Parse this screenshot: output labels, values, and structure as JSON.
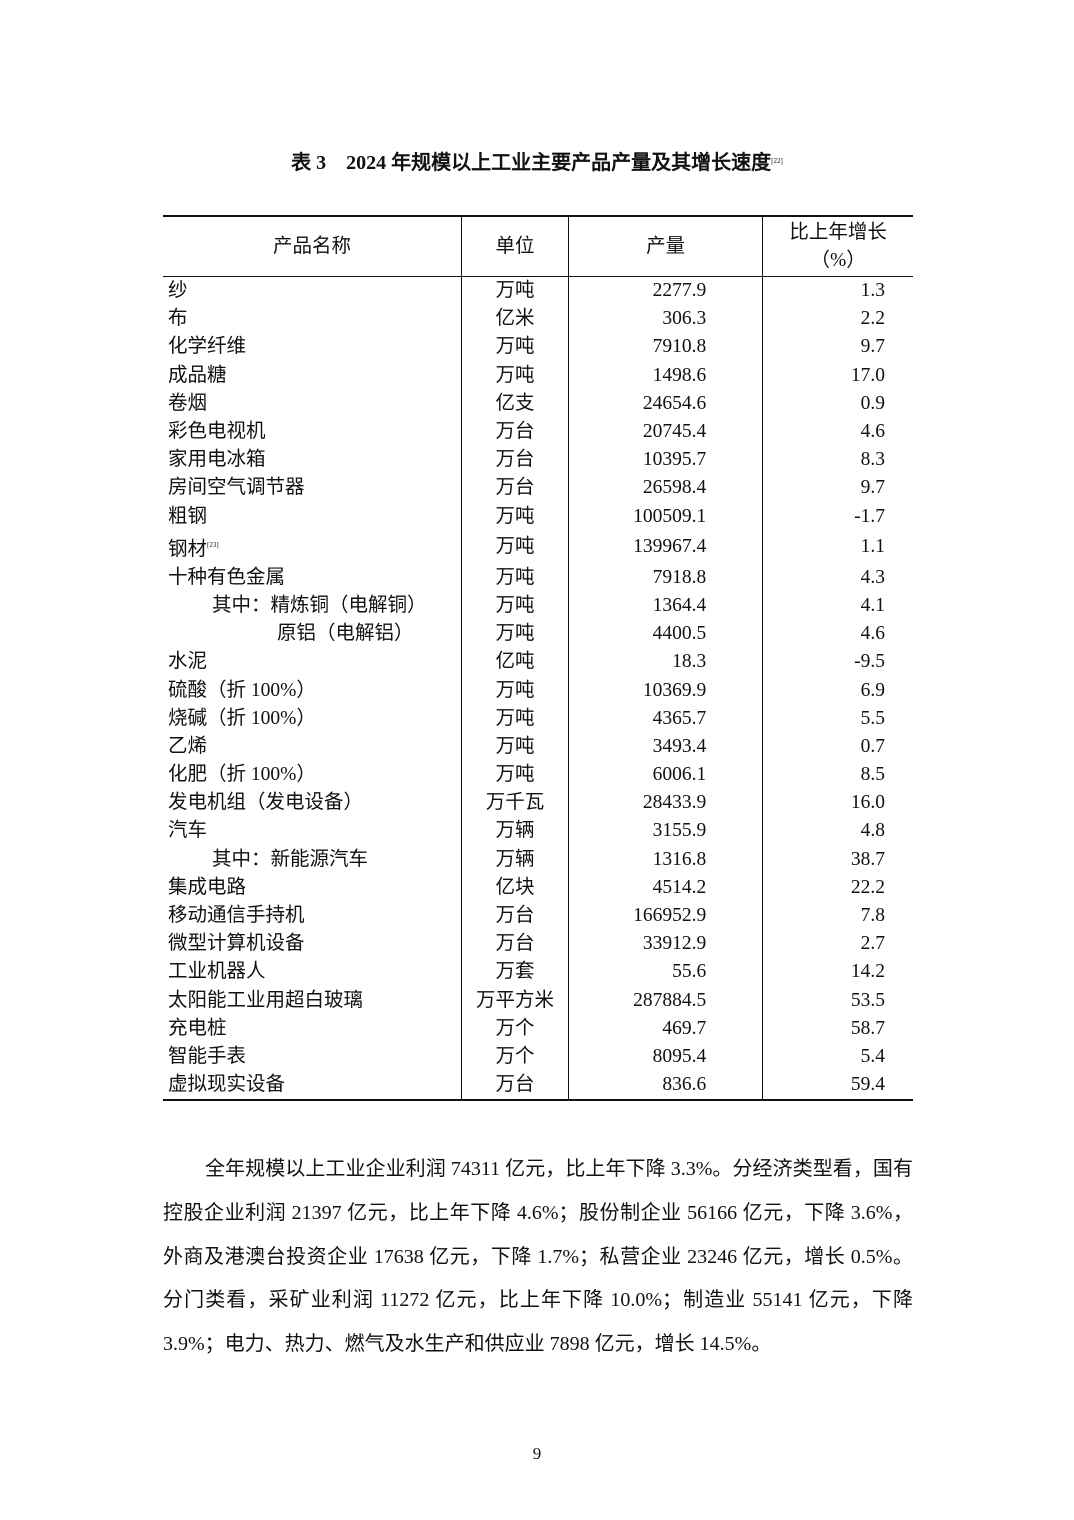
{
  "title": {
    "text": "表 3　2024 年规模以上工业主要产品产量及其增长速度",
    "footnote": "[22]"
  },
  "table": {
    "headers": [
      "产品名称",
      "单位",
      "产量",
      "比上年增长",
      "（%）"
    ],
    "rows": [
      {
        "name": "纱",
        "unit": "万吨",
        "output": "2277.9",
        "growth": "1.3"
      },
      {
        "name": "布",
        "unit": "亿米",
        "output": "306.3",
        "growth": "2.2"
      },
      {
        "name": "化学纤维",
        "unit": "万吨",
        "output": "7910.8",
        "growth": "9.7"
      },
      {
        "name": "成品糖",
        "unit": "万吨",
        "output": "1498.6",
        "growth": "17.0"
      },
      {
        "name": "卷烟",
        "unit": "亿支",
        "output": "24654.6",
        "growth": "0.9"
      },
      {
        "name": "彩色电视机",
        "unit": "万台",
        "output": "20745.4",
        "growth": "4.6"
      },
      {
        "name": "家用电冰箱",
        "unit": "万台",
        "output": "10395.7",
        "growth": "8.3"
      },
      {
        "name": "房间空气调节器",
        "unit": "万台",
        "output": "26598.4",
        "growth": "9.7"
      },
      {
        "name": "粗钢",
        "unit": "万吨",
        "output": "100509.1",
        "growth": "-1.7"
      },
      {
        "name": "钢材",
        "note": "[23]",
        "unit": "万吨",
        "output": "139967.4",
        "growth": "1.1"
      },
      {
        "name": "十种有色金属",
        "unit": "万吨",
        "output": "7918.8",
        "growth": "4.3"
      },
      {
        "name": "其中：精炼铜（电解铜）",
        "indent": 1,
        "unit": "万吨",
        "output": "1364.4",
        "growth": "4.1"
      },
      {
        "name": "原铝（电解铝）",
        "indent": 2,
        "unit": "万吨",
        "output": "4400.5",
        "growth": "4.6"
      },
      {
        "name": "水泥",
        "unit": "亿吨",
        "output": "18.3",
        "growth": "-9.5"
      },
      {
        "name": "硫酸（折 100%）",
        "unit": "万吨",
        "output": "10369.9",
        "growth": "6.9"
      },
      {
        "name": "烧碱（折 100%）",
        "unit": "万吨",
        "output": "4365.7",
        "growth": "5.5"
      },
      {
        "name": "乙烯",
        "unit": "万吨",
        "output": "3493.4",
        "growth": "0.7"
      },
      {
        "name": "化肥（折 100%）",
        "unit": "万吨",
        "output": "6006.1",
        "growth": "8.5"
      },
      {
        "name": "发电机组（发电设备）",
        "unit": "万千瓦",
        "output": "28433.9",
        "growth": "16.0"
      },
      {
        "name": "汽车",
        "unit": "万辆",
        "output": "3155.9",
        "growth": "4.8"
      },
      {
        "name": "其中：新能源汽车",
        "indent": 1,
        "unit": "万辆",
        "output": "1316.8",
        "growth": "38.7"
      },
      {
        "name": "集成电路",
        "unit": "亿块",
        "output": "4514.2",
        "growth": "22.2"
      },
      {
        "name": "移动通信手持机",
        "unit": "万台",
        "output": "166952.9",
        "growth": "7.8"
      },
      {
        "name": "微型计算机设备",
        "unit": "万台",
        "output": "33912.9",
        "growth": "2.7"
      },
      {
        "name": "工业机器人",
        "unit": "万套",
        "output": "55.6",
        "growth": "14.2"
      },
      {
        "name": "太阳能工业用超白玻璃",
        "unit": "万平方米",
        "output": "287884.5",
        "growth": "53.5"
      },
      {
        "name": "充电桩",
        "unit": "万个",
        "output": "469.7",
        "growth": "58.7"
      },
      {
        "name": "智能手表",
        "unit": "万个",
        "output": "8095.4",
        "growth": "5.4"
      },
      {
        "name": "虚拟现实设备",
        "unit": "万台",
        "output": "836.6",
        "growth": "59.4"
      }
    ]
  },
  "paragraph": "全年规模以上工业企业利润 74311 亿元，比上年下降 3.3%。分经济类型看，国有控股企业利润 21397 亿元，比上年下降 4.6%；股份制企业 56166 亿元，下降 3.6%，外商及港澳台投资企业 17638 亿元，下降 1.7%；私营企业 23246 亿元，增长 0.5%。分门类看，采矿业利润 11272 亿元，比上年下降 10.0%；制造业 55141 亿元，下降 3.9%；电力、热力、燃气及水生产和供应业 7898 亿元，增长 14.5%。",
  "page_number": "9"
}
